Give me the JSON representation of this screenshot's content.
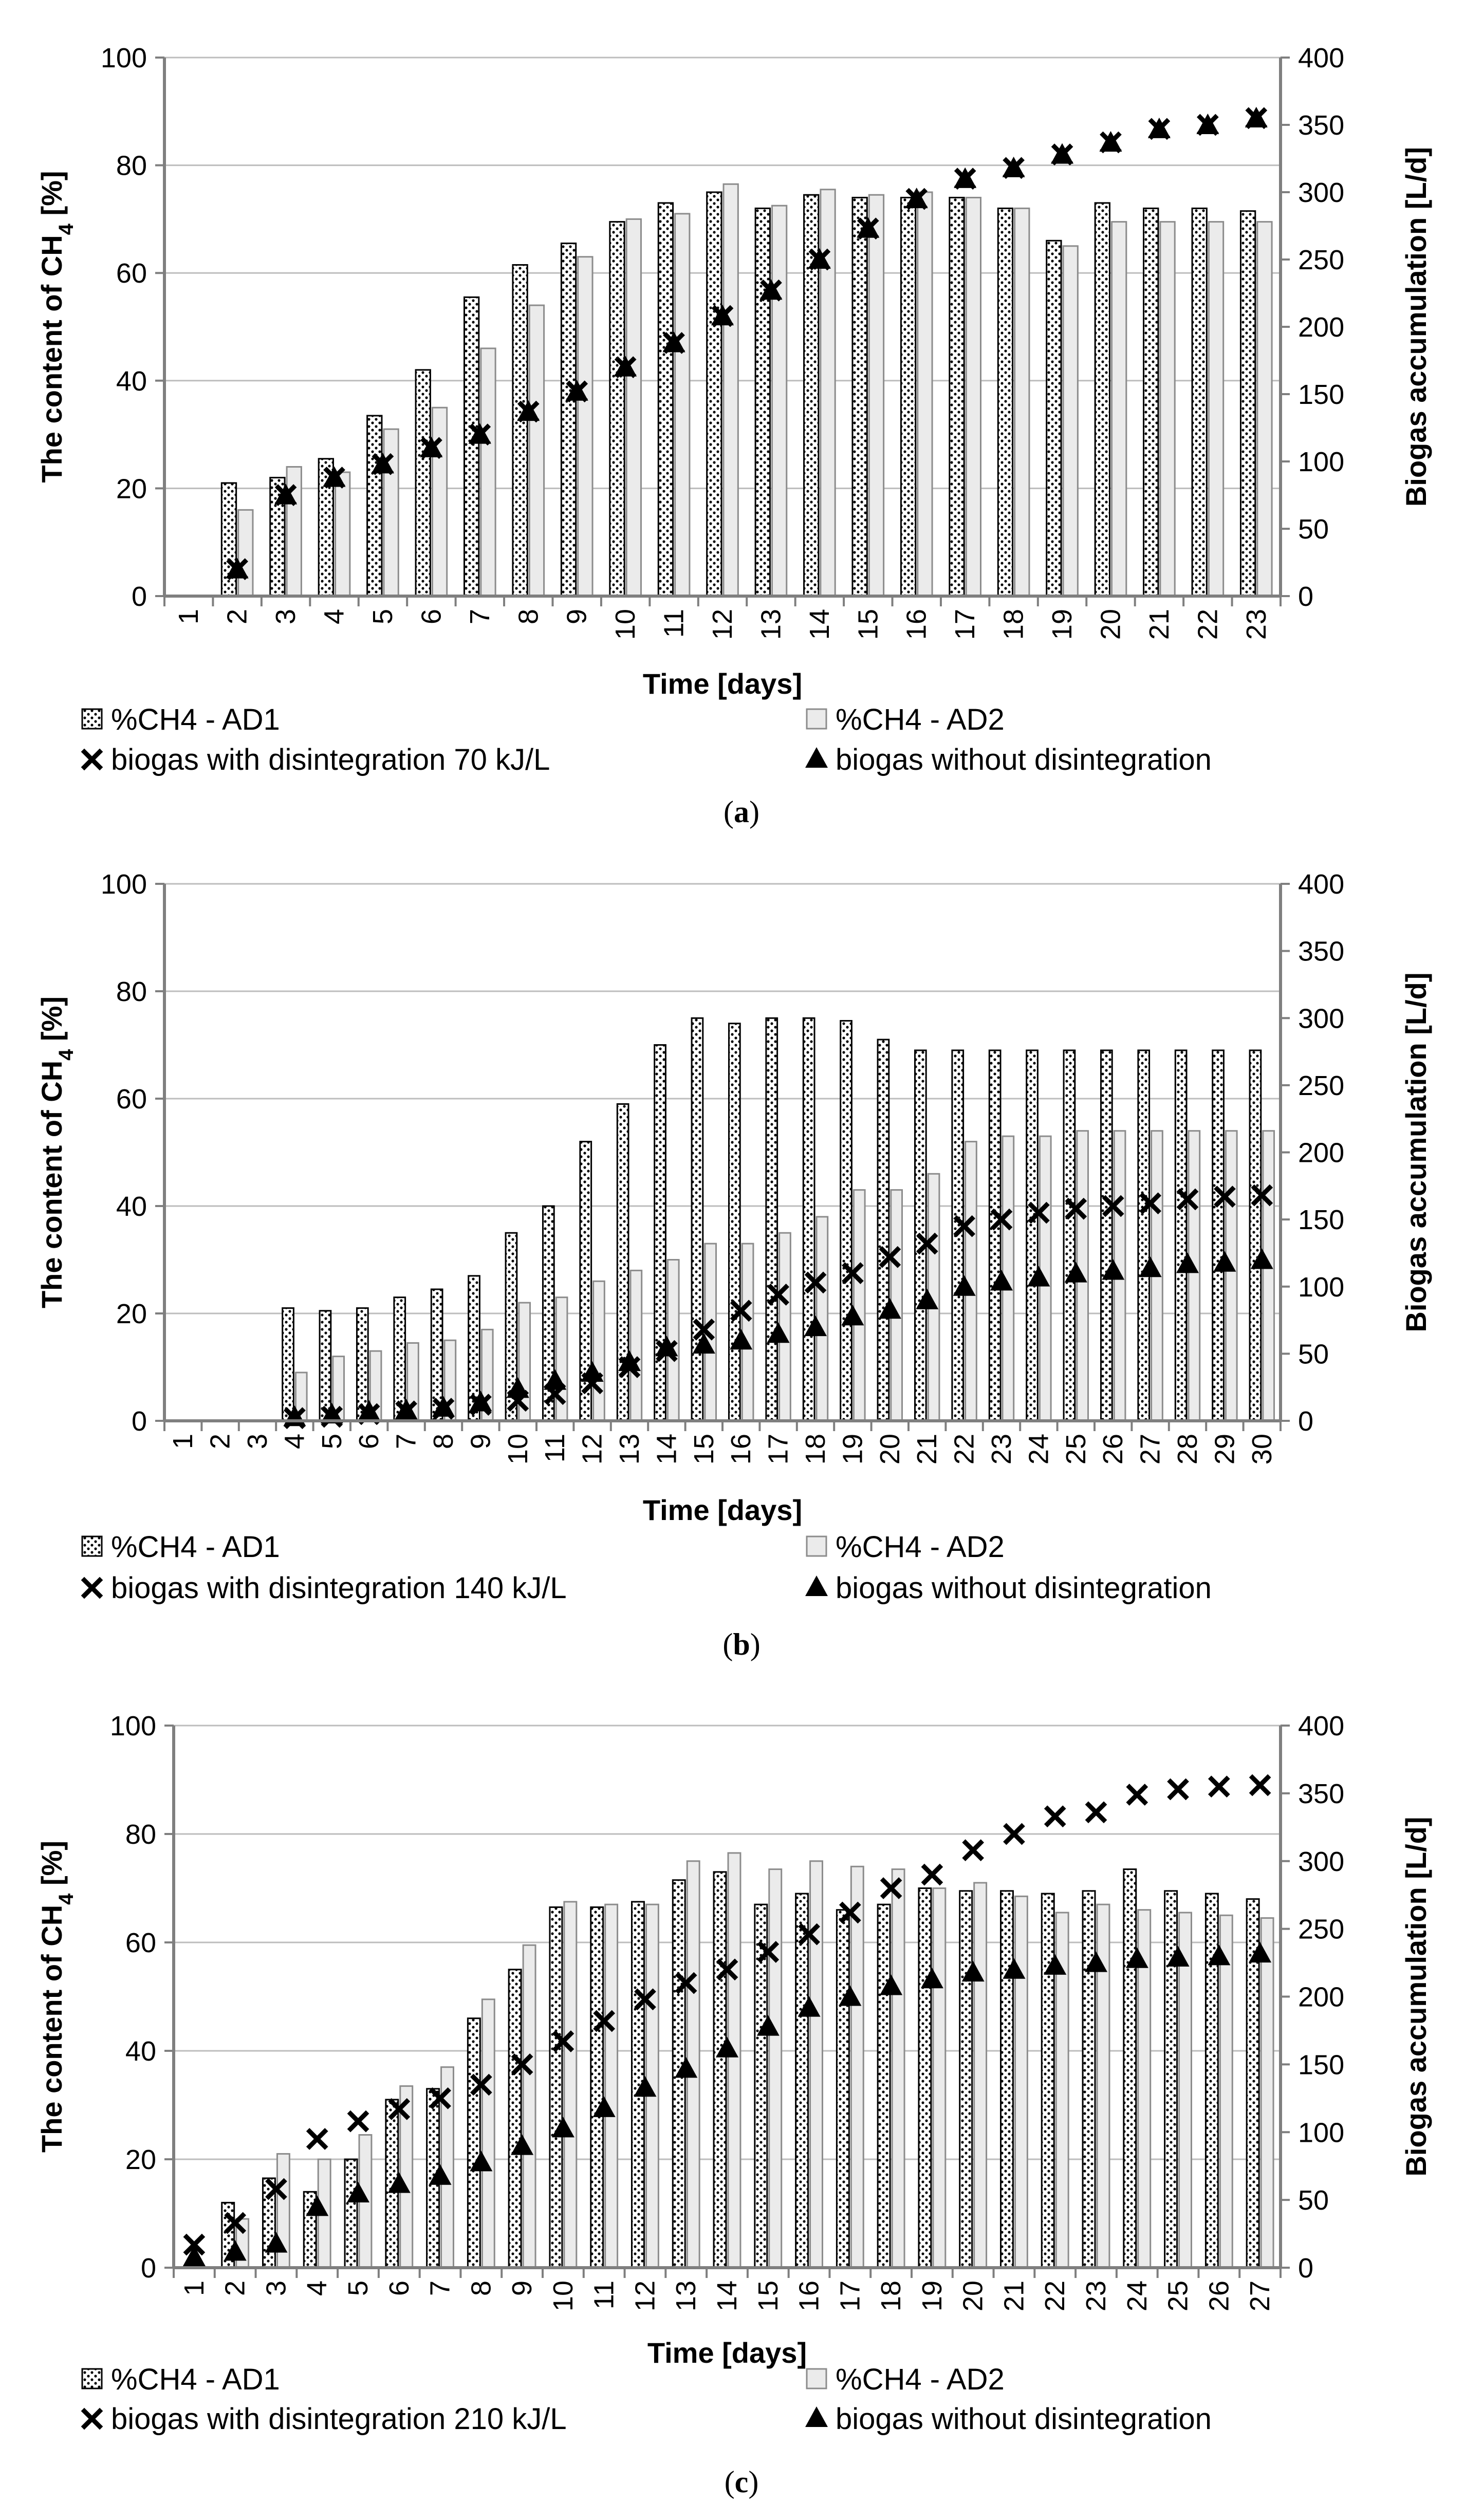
{
  "y_left_label": "The content of CH",
  "y_left_sub": "4",
  "y_left_unit": " [%]",
  "y_right_label": "Biogas  accumulation [L/d]",
  "colors": {
    "ad1_fill": "#ffffff",
    "ad1_dots": "#000000",
    "ad2_fill": "#ebebeb",
    "ad2_stroke": "#8c8c8c",
    "grid": "#bdbdbd",
    "axis": "#7f7f7f",
    "marker": "#000000"
  },
  "chart_data": [
    {
      "type": "bar",
      "panel": "(a)",
      "panel_letter": "a",
      "xlabel": "Time [days]",
      "categories": [
        "1",
        "2",
        "3",
        "4",
        "5",
        "6",
        "7",
        "8",
        "9",
        "10",
        "11",
        "12",
        "13",
        "14",
        "15",
        "16",
        "17",
        "18",
        "19",
        "20",
        "21",
        "22",
        "23"
      ],
      "ylim_left": [
        0,
        100
      ],
      "ylim_right": [
        0,
        400
      ],
      "y_ticks_left": [
        "0",
        "20",
        "40",
        "60",
        "80",
        "100"
      ],
      "y_ticks_right": [
        "0",
        "50",
        "100",
        "150",
        "200",
        "250",
        "300",
        "350",
        "400"
      ],
      "legend": [
        "%CH4 - AD1",
        "%CH4 - AD2",
        "biogas with disintegration 70 kJ/L",
        "biogas without disintegration"
      ],
      "series": [
        {
          "name": "%CH4 - AD1",
          "axis": "left",
          "kind": "bar",
          "values": [
            null,
            21,
            22,
            25.5,
            33.5,
            42,
            55.5,
            61.5,
            65.5,
            69.5,
            73,
            75,
            72,
            74.5,
            74,
            74,
            74,
            72,
            66,
            73,
            72,
            72,
            71.5
          ]
        },
        {
          "name": "%CH4 - AD2",
          "axis": "left",
          "kind": "bar",
          "values": [
            null,
            16,
            24,
            23,
            31,
            35,
            46,
            54,
            63,
            70,
            71,
            76.5,
            72.5,
            75.5,
            74.5,
            75,
            74,
            72,
            65,
            69.5,
            69.5,
            69.5,
            69.5
          ]
        },
        {
          "name": "biogas with disintegration 70 kJ/L",
          "axis": "right",
          "kind": "x",
          "values": [
            null,
            20,
            75,
            88,
            98,
            110,
            120,
            137,
            152,
            170,
            188,
            208,
            227,
            250,
            273,
            295,
            310,
            318,
            328,
            337,
            347,
            350,
            355
          ]
        },
        {
          "name": "biogas without disintegration",
          "axis": "right",
          "kind": "triangle",
          "values": [
            null,
            20,
            75,
            88,
            98,
            110,
            120,
            137,
            152,
            170,
            188,
            208,
            227,
            250,
            273,
            295,
            310,
            318,
            328,
            337,
            347,
            350,
            355
          ]
        }
      ]
    },
    {
      "type": "bar",
      "panel": "(b)",
      "panel_letter": "b",
      "xlabel": "Time [days]",
      "categories": [
        "1",
        "2",
        "3",
        "4",
        "5",
        "6",
        "7",
        "8",
        "9",
        "10",
        "11",
        "12",
        "13",
        "14",
        "15",
        "16",
        "17",
        "18",
        "19",
        "20",
        "21",
        "22",
        "23",
        "24",
        "25",
        "26",
        "27",
        "28",
        "29",
        "30"
      ],
      "ylim_left": [
        0,
        100
      ],
      "ylim_right": [
        0,
        400
      ],
      "y_ticks_left": [
        "0",
        "20",
        "40",
        "60",
        "80",
        "100"
      ],
      "y_ticks_right": [
        "0",
        "50",
        "100",
        "150",
        "200",
        "250",
        "300",
        "350",
        "400"
      ],
      "legend": [
        "%CH4 - AD1",
        "%CH4 - AD2",
        "biogas with disintegration 140 kJ/L",
        "biogas without disintegration"
      ],
      "series": [
        {
          "name": "%CH4 - AD1",
          "axis": "left",
          "kind": "bar",
          "values": [
            null,
            null,
            null,
            21,
            20.5,
            21,
            23,
            24.5,
            27,
            35,
            40,
            52,
            59,
            70,
            75,
            74,
            75,
            75,
            74.5,
            71,
            69,
            69,
            69,
            69,
            69,
            69,
            69,
            69,
            69,
            69
          ]
        },
        {
          "name": "%CH4 - AD2",
          "axis": "left",
          "kind": "bar",
          "values": [
            null,
            null,
            null,
            9,
            12,
            13,
            14.5,
            15,
            17,
            22,
            23,
            26,
            28,
            30,
            33,
            33,
            35,
            38,
            43,
            43,
            46,
            52,
            53,
            53,
            54,
            54,
            54,
            54,
            54,
            54
          ]
        },
        {
          "name": "biogas with disintegration 140 kJ/L",
          "axis": "right",
          "kind": "x",
          "values": [
            null,
            null,
            null,
            2,
            3,
            5,
            7,
            9,
            12,
            15,
            20,
            28,
            40,
            52,
            68,
            82,
            94,
            103,
            110,
            122,
            132,
            145,
            150,
            155,
            158,
            160,
            162,
            165,
            167,
            168
          ]
        },
        {
          "name": "biogas without disintegration",
          "axis": "right",
          "kind": "triangle",
          "values": [
            null,
            null,
            null,
            3,
            5,
            7,
            8,
            10,
            14,
            24,
            30,
            36,
            44,
            55,
            57,
            60,
            65,
            70,
            78,
            83,
            90,
            100,
            104,
            107,
            110,
            112,
            114,
            117,
            118,
            120
          ]
        }
      ]
    },
    {
      "type": "bar",
      "panel": "(c)",
      "panel_letter": "c",
      "xlabel": "Time [days]",
      "categories": [
        "1",
        "2",
        "3",
        "4",
        "5",
        "6",
        "7",
        "8",
        "9",
        "10",
        "11",
        "12",
        "13",
        "14",
        "15",
        "16",
        "17",
        "18",
        "19",
        "20",
        "21",
        "22",
        "23",
        "24",
        "25",
        "26",
        "27"
      ],
      "ylim_left": [
        0,
        100
      ],
      "ylim_right": [
        0,
        400
      ],
      "y_ticks_left": [
        "0",
        "20",
        "40",
        "60",
        "80",
        "100"
      ],
      "y_ticks_right": [
        "0",
        "50",
        "100",
        "150",
        "200",
        "250",
        "300",
        "350",
        "400"
      ],
      "legend": [
        "%CH4 - AD1",
        "%CH4 - AD2",
        "biogas with disintegration 210 kJ/L",
        "biogas without disintegration"
      ],
      "series": [
        {
          "name": "%CH4 - AD1",
          "axis": "left",
          "kind": "bar",
          "values": [
            null,
            12,
            16.5,
            14,
            20,
            31,
            33,
            46,
            55,
            66.5,
            66.5,
            67.5,
            71.5,
            73,
            67,
            69,
            66,
            67,
            70,
            69.5,
            69.5,
            69,
            69.5,
            73.5,
            69.5,
            69,
            68
          ]
        },
        {
          "name": "%CH4 - AD2",
          "axis": "left",
          "kind": "bar",
          "values": [
            null,
            9,
            21,
            20,
            24.5,
            33.5,
            37,
            49.5,
            59.5,
            67.5,
            67,
            67,
            75,
            76.5,
            73.5,
            75,
            74,
            73.5,
            70,
            71,
            68.5,
            65.5,
            67,
            66,
            65.5,
            65,
            64.5
          ]
        },
        {
          "name": "biogas with disintegration 210 kJ/L",
          "axis": "right",
          "kind": "x",
          "values": [
            17,
            33,
            58,
            95,
            108,
            117,
            125,
            135,
            150,
            167,
            182,
            198,
            210,
            220,
            233,
            246,
            262,
            280,
            290,
            308,
            320,
            333,
            336,
            349,
            353,
            355,
            356
          ]
        },
        {
          "name": "biogas without disintegration",
          "axis": "right",
          "kind": "triangle",
          "values": [
            8,
            12,
            18,
            45,
            55,
            62,
            68,
            78,
            90,
            103,
            118,
            133,
            147,
            162,
            178,
            192,
            200,
            208,
            213,
            218,
            220,
            223,
            225,
            228,
            229,
            230,
            232
          ]
        }
      ]
    }
  ]
}
